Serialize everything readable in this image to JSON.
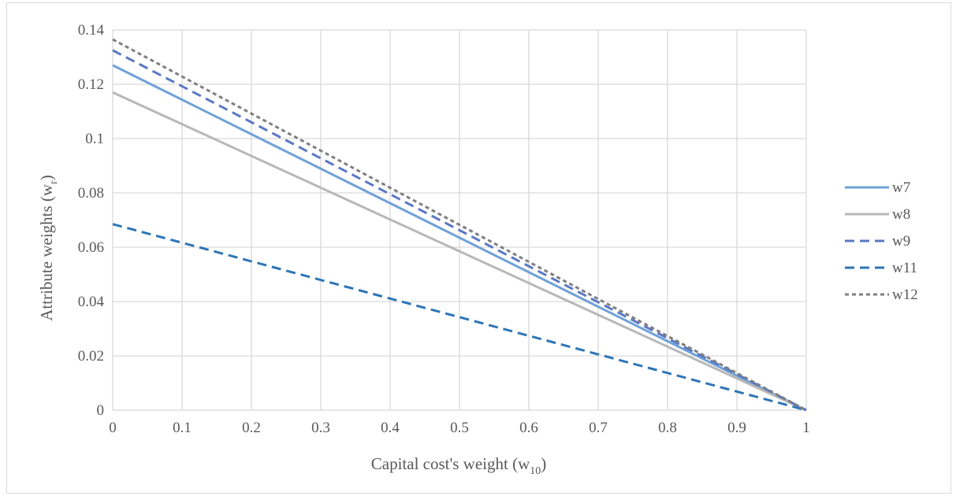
{
  "chart_data": {
    "type": "line",
    "title": "",
    "xlabel": {
      "main": "Capital cost's weight (w",
      "sub": "10",
      "close": ")"
    },
    "ylabel": {
      "main": "Attribute weights (w",
      "sub": "r",
      "close": ")"
    },
    "xlim": [
      0,
      1
    ],
    "ylim": [
      0,
      0.14
    ],
    "x_ticks": [
      "0",
      "0.1",
      "0.2",
      "0.3",
      "0.4",
      "0.5",
      "0.6",
      "0.7",
      "0.8",
      "0.9",
      "1"
    ],
    "y_ticks": [
      "0",
      "0.02",
      "0.04",
      "0.06",
      "0.08",
      "0.1",
      "0.12",
      "0.14"
    ],
    "grid": true,
    "legend_position": "right",
    "x": [
      0,
      1
    ],
    "series": [
      {
        "name": "w7",
        "values": [
          0.127,
          0
        ],
        "color": "#6fa1d8",
        "style": "solid"
      },
      {
        "name": "w8",
        "values": [
          0.117,
          0
        ],
        "color": "#b7b7b7",
        "style": "solid"
      },
      {
        "name": "w9",
        "values": [
          0.1325,
          0
        ],
        "color": "#5a78c4",
        "style": "dashed"
      },
      {
        "name": "w11",
        "values": [
          0.0685,
          0
        ],
        "color": "#2e75b6",
        "style": "dashed"
      },
      {
        "name": "w12",
        "values": [
          0.1365,
          0
        ],
        "color": "#7f7f7f",
        "style": "dotted"
      }
    ]
  }
}
